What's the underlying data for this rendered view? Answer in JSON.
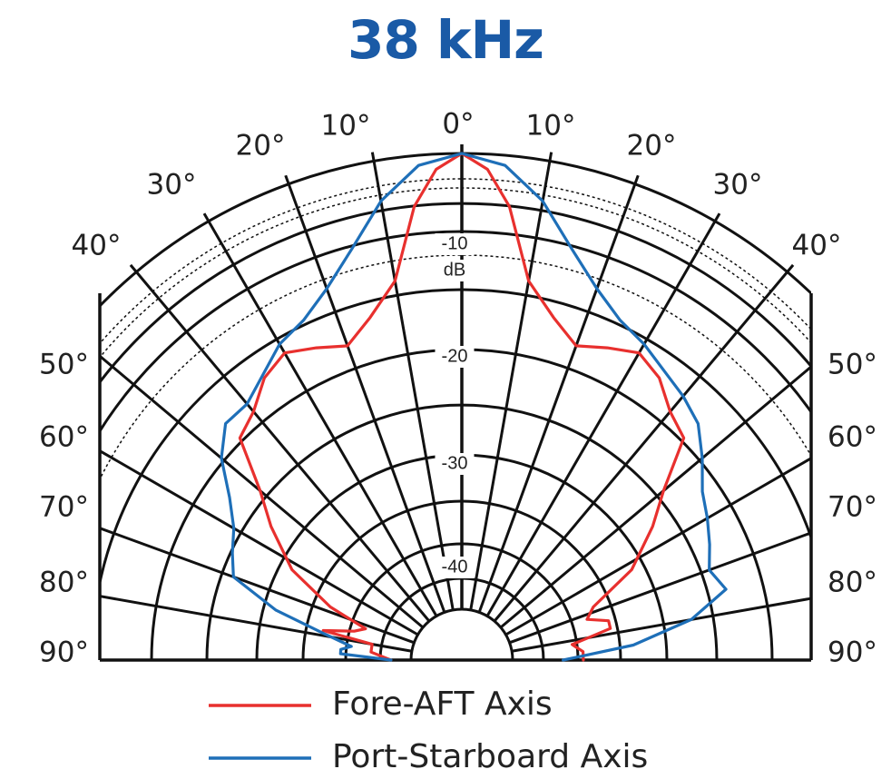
{
  "chart_data": {
    "type": "polar-line",
    "title": "38 kHz",
    "title_color": "#1a5aa6",
    "angle_tick_labels": {
      "top_left": [
        "10°",
        "20°",
        "30°",
        "40°"
      ],
      "top_center": "0°",
      "top_right": [
        "10°",
        "20°",
        "30°",
        "40°"
      ],
      "left": [
        "50°",
        "60°",
        "70°",
        "80°",
        "90°"
      ],
      "right": [
        "50°",
        "60°",
        "70°",
        "80°",
        "90°"
      ]
    },
    "radial_tick_labels": [
      "-10",
      "dB",
      "-20",
      "-30",
      "-40"
    ],
    "r_range_db": [
      -50,
      0
    ],
    "series": [
      {
        "name": "Fore-AFT Axis",
        "color": "#e8302e",
        "points": [
          [
            -90,
            -43
          ],
          [
            -85,
            -41
          ],
          [
            -80,
            -41
          ],
          [
            -78,
            -36
          ],
          [
            -75,
            -39
          ],
          [
            -72,
            -40
          ],
          [
            -68,
            -36
          ],
          [
            -62,
            -31
          ],
          [
            -55,
            -27
          ],
          [
            -50,
            -24
          ],
          [
            -45,
            -19
          ],
          [
            -40,
            -18
          ],
          [
            -35,
            -16
          ],
          [
            -30,
            -15
          ],
          [
            -25,
            -16
          ],
          [
            -20,
            -17
          ],
          [
            -15,
            -15
          ],
          [
            -10,
            -12
          ],
          [
            -6,
            -5
          ],
          [
            -3,
            -1.5
          ],
          [
            0,
            0
          ],
          [
            3,
            -1.5
          ],
          [
            6,
            -5
          ],
          [
            10,
            -12
          ],
          [
            15,
            -15
          ],
          [
            20,
            -17
          ],
          [
            25,
            -16
          ],
          [
            30,
            -15
          ],
          [
            35,
            -16
          ],
          [
            40,
            -18
          ],
          [
            45,
            -19
          ],
          [
            50,
            -24
          ],
          [
            55,
            -27
          ],
          [
            62,
            -31
          ],
          [
            68,
            -36
          ],
          [
            72,
            -37
          ],
          [
            75,
            -35
          ],
          [
            78,
            -35
          ],
          [
            82,
            -39
          ],
          [
            86,
            -38
          ],
          [
            90,
            -38
          ]
        ]
      },
      {
        "name": "Port-Starboard Axis",
        "color": "#1e6fb8",
        "points": [
          [
            -90,
            -43
          ],
          [
            -87,
            -38
          ],
          [
            -85,
            -38
          ],
          [
            -83,
            -39
          ],
          [
            -79,
            -36
          ],
          [
            -75,
            -31
          ],
          [
            -70,
            -26
          ],
          [
            -65,
            -25
          ],
          [
            -60,
            -24
          ],
          [
            -55,
            -22
          ],
          [
            -50,
            -19
          ],
          [
            -45,
            -17
          ],
          [
            -40,
            -17
          ],
          [
            -30,
            -14
          ],
          [
            -25,
            -13
          ],
          [
            -20,
            -11
          ],
          [
            -15,
            -8
          ],
          [
            -10,
            -4
          ],
          [
            -5,
            -1
          ],
          [
            0,
            0
          ],
          [
            5,
            -1
          ],
          [
            10,
            -4
          ],
          [
            15,
            -8
          ],
          [
            20,
            -11
          ],
          [
            25,
            -13
          ],
          [
            30,
            -14
          ],
          [
            40,
            -16
          ],
          [
            45,
            -17
          ],
          [
            50,
            -19
          ],
          [
            55,
            -21
          ],
          [
            60,
            -22
          ],
          [
            65,
            -23
          ],
          [
            70,
            -24
          ],
          [
            75,
            -23
          ],
          [
            80,
            -27
          ],
          [
            85,
            -33
          ],
          [
            88,
            -38
          ],
          [
            90,
            -40
          ]
        ]
      }
    ],
    "grid": true,
    "legend_position": "bottom-center"
  }
}
